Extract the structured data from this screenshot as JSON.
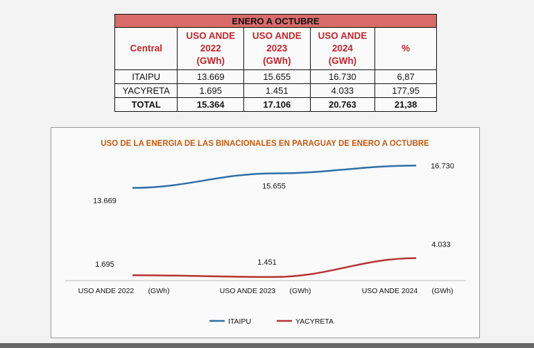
{
  "table": {
    "title": "ENERO A OCTUBRE",
    "headers": [
      {
        "lines": [
          "Central"
        ]
      },
      {
        "lines": [
          "USO ANDE",
          "2022",
          "(GWh)"
        ]
      },
      {
        "lines": [
          "USO ANDE",
          "2023",
          "(GWh)"
        ]
      },
      {
        "lines": [
          "USO ANDE",
          "2024",
          "(GWh)"
        ]
      },
      {
        "lines": [
          "%"
        ]
      }
    ],
    "rows": [
      [
        "ITAIPU",
        "13.669",
        "15.655",
        "16.730",
        "6,87"
      ],
      [
        "YACYRETA",
        "1.695",
        "1.451",
        "4.033",
        "177,95"
      ]
    ],
    "total": [
      "TOTAL",
      "15.364",
      "17.106",
      "20.763",
      "21,38"
    ]
  },
  "chart_data": {
    "type": "line",
    "title": "USO DE LA ENERGIA DE LAS BINACIONALES EN PARAGUAY DE ENERO A OCTUBRE",
    "categories": [
      "USO ANDE 2022",
      "USO ANDE  2023",
      "USO ANDE  2024"
    ],
    "category_suffix": "(GWh)",
    "series": [
      {
        "name": "ITAIPU",
        "values": [
          13669,
          15655,
          16730
        ],
        "labels": [
          "13.669",
          "15.655",
          "16.730"
        ],
        "color": "#2e6fa7"
      },
      {
        "name": "YACYRETA",
        "values": [
          1695,
          1451,
          4033
        ],
        "labels": [
          "1.695",
          "1.451",
          "4.033"
        ],
        "color": "#b83232"
      }
    ],
    "xlabel": "",
    "ylabel": "",
    "ylim": [
      0,
      20000
    ],
    "legend": "bottom",
    "grid": false,
    "title_color": "#c55a11"
  }
}
